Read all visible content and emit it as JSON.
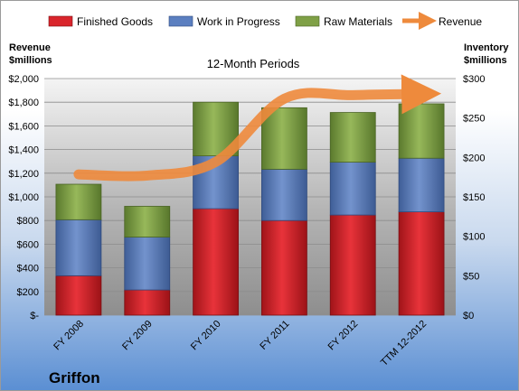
{
  "company": "Griffon",
  "chart_data": {
    "type": "bar",
    "stacked": true,
    "title": "12-Month Periods",
    "categories": [
      "FY 2008",
      "FY 2009",
      "FY 2010",
      "FY 2011",
      "FY 2012",
      "TTM 12-2012"
    ],
    "series": [
      {
        "name": "Finished Goods",
        "axis": "right",
        "color": "#d9252c",
        "values": [
          50,
          32,
          135,
          120,
          127,
          131
        ]
      },
      {
        "name": "Work in Progress",
        "axis": "right",
        "color": "#5b7fc0",
        "values": [
          71,
          67,
          67,
          65,
          67,
          68
        ]
      },
      {
        "name": "Raw Materials",
        "axis": "right",
        "color": "#7fa046",
        "values": [
          45,
          39,
          68,
          78,
          63,
          69
        ]
      },
      {
        "name": "Revenue",
        "axis": "left",
        "type": "line",
        "color": "#ee8a3c",
        "values": [
          1190,
          1180,
          1295,
          1830,
          1860,
          1870
        ]
      }
    ],
    "left_axis": {
      "label_line1": "Revenue",
      "label_line2": "$millions",
      "ylim": [
        0,
        2000
      ],
      "ticks": [
        0,
        200,
        400,
        600,
        800,
        1000,
        1200,
        1400,
        1600,
        1800,
        2000
      ],
      "tick_labels": [
        "$-",
        "$200",
        "$400",
        "$600",
        "$800",
        "$1,000",
        "$1,200",
        "$1,400",
        "$1,600",
        "$1,800",
        "$2,000"
      ]
    },
    "right_axis": {
      "label_line1": "Inventory",
      "label_line2": "$millions",
      "ylim": [
        0,
        300
      ],
      "ticks": [
        0,
        50,
        100,
        150,
        200,
        250,
        300
      ],
      "tick_labels": [
        "$0",
        "$50",
        "$100",
        "$150",
        "$200",
        "$250",
        "$300"
      ]
    },
    "grid": true,
    "legend_position": "top"
  }
}
